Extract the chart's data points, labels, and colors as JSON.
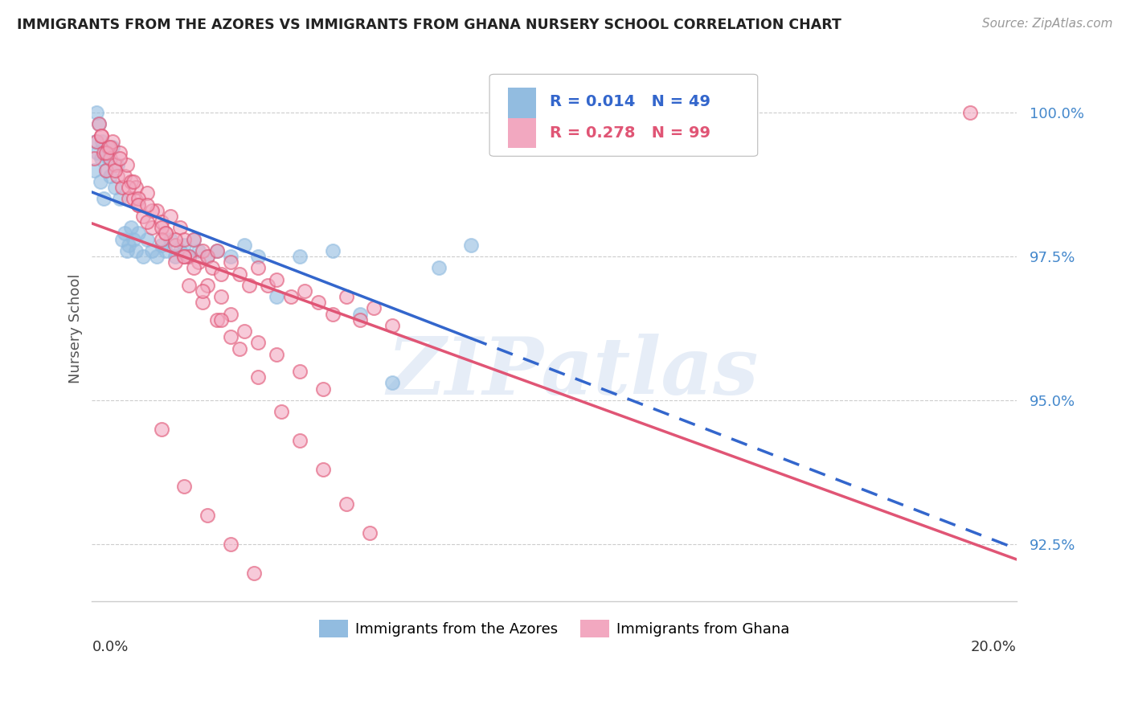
{
  "title": "IMMIGRANTS FROM THE AZORES VS IMMIGRANTS FROM GHANA NURSERY SCHOOL CORRELATION CHART",
  "source": "Source: ZipAtlas.com",
  "ylabel": "Nursery School",
  "yticks": [
    92.5,
    95.0,
    97.5,
    100.0
  ],
  "ytick_labels": [
    "92.5%",
    "95.0%",
    "97.5%",
    "100.0%"
  ],
  "xmin": 0.0,
  "xmax": 20.0,
  "ymin": 91.5,
  "ymax": 101.0,
  "legend_blue_R": "0.014",
  "legend_blue_N": "49",
  "legend_pink_R": "0.278",
  "legend_pink_N": "99",
  "blue_color": "#92bce0",
  "pink_color": "#f2a8c0",
  "blue_line_color": "#3366cc",
  "pink_line_color": "#e05575",
  "watermark": "ZIPatlas",
  "azores_x": [
    0.05,
    0.08,
    0.1,
    0.12,
    0.15,
    0.18,
    0.2,
    0.22,
    0.25,
    0.3,
    0.35,
    0.4,
    0.45,
    0.5,
    0.55,
    0.6,
    0.65,
    0.7,
    0.75,
    0.8,
    0.85,
    0.9,
    0.95,
    1.0,
    1.1,
    1.2,
    1.3,
    1.4,
    1.5,
    1.6,
    1.7,
    1.8,
    1.9,
    2.0,
    2.1,
    2.2,
    2.3,
    2.5,
    2.7,
    3.0,
    3.3,
    3.6,
    4.0,
    4.5,
    5.2,
    5.8,
    6.5,
    7.5,
    8.2
  ],
  "azores_y": [
    99.0,
    99.5,
    100.0,
    99.3,
    99.8,
    98.8,
    99.2,
    99.5,
    98.5,
    99.0,
    99.2,
    98.9,
    99.4,
    98.7,
    99.1,
    98.5,
    97.8,
    97.9,
    97.6,
    97.7,
    98.0,
    97.8,
    97.6,
    97.9,
    97.5,
    97.8,
    97.6,
    97.5,
    97.7,
    97.6,
    97.8,
    97.5,
    97.6,
    97.7,
    97.5,
    97.8,
    97.6,
    97.5,
    97.6,
    97.5,
    97.7,
    97.5,
    96.8,
    97.5,
    97.6,
    96.5,
    95.3,
    97.3,
    97.7
  ],
  "azores_max_data_x": 8.2,
  "ghana_x": [
    0.05,
    0.1,
    0.15,
    0.2,
    0.25,
    0.3,
    0.35,
    0.4,
    0.45,
    0.5,
    0.55,
    0.6,
    0.65,
    0.7,
    0.75,
    0.8,
    0.85,
    0.9,
    0.95,
    1.0,
    1.1,
    1.2,
    1.3,
    1.4,
    1.5,
    1.6,
    1.7,
    1.8,
    1.9,
    2.0,
    2.1,
    2.2,
    2.3,
    2.4,
    2.5,
    2.6,
    2.7,
    2.8,
    3.0,
    3.2,
    3.4,
    3.6,
    3.8,
    4.0,
    4.3,
    4.6,
    4.9,
    5.2,
    5.5,
    5.8,
    6.1,
    6.5,
    1.0,
    1.3,
    1.5,
    1.8,
    2.0,
    2.2,
    2.5,
    2.8,
    3.0,
    3.3,
    3.6,
    4.0,
    4.5,
    5.0,
    0.3,
    0.5,
    0.8,
    1.0,
    1.2,
    1.5,
    1.8,
    2.1,
    2.4,
    2.7,
    3.0,
    0.2,
    0.4,
    0.6,
    0.9,
    1.2,
    1.6,
    2.0,
    2.4,
    2.8,
    3.2,
    3.6,
    4.1,
    4.5,
    5.0,
    5.5,
    6.0,
    1.5,
    2.0,
    2.5,
    3.0,
    3.5,
    19.0
  ],
  "ghana_y": [
    99.2,
    99.5,
    99.8,
    99.6,
    99.3,
    99.0,
    99.4,
    99.2,
    99.5,
    99.1,
    98.9,
    99.3,
    98.7,
    98.9,
    99.1,
    98.5,
    98.8,
    98.5,
    98.7,
    98.4,
    98.2,
    98.6,
    98.0,
    98.3,
    98.1,
    97.9,
    98.2,
    97.7,
    98.0,
    97.8,
    97.5,
    97.8,
    97.4,
    97.6,
    97.5,
    97.3,
    97.6,
    97.2,
    97.4,
    97.2,
    97.0,
    97.3,
    97.0,
    97.1,
    96.8,
    96.9,
    96.7,
    96.5,
    96.8,
    96.4,
    96.6,
    96.3,
    98.5,
    98.3,
    98.0,
    97.8,
    97.5,
    97.3,
    97.0,
    96.8,
    96.5,
    96.2,
    96.0,
    95.8,
    95.5,
    95.2,
    99.3,
    99.0,
    98.7,
    98.4,
    98.1,
    97.8,
    97.4,
    97.0,
    96.7,
    96.4,
    96.1,
    99.6,
    99.4,
    99.2,
    98.8,
    98.4,
    97.9,
    97.5,
    96.9,
    96.4,
    95.9,
    95.4,
    94.8,
    94.3,
    93.8,
    93.2,
    92.7,
    94.5,
    93.5,
    93.0,
    92.5,
    92.0,
    100.0
  ]
}
